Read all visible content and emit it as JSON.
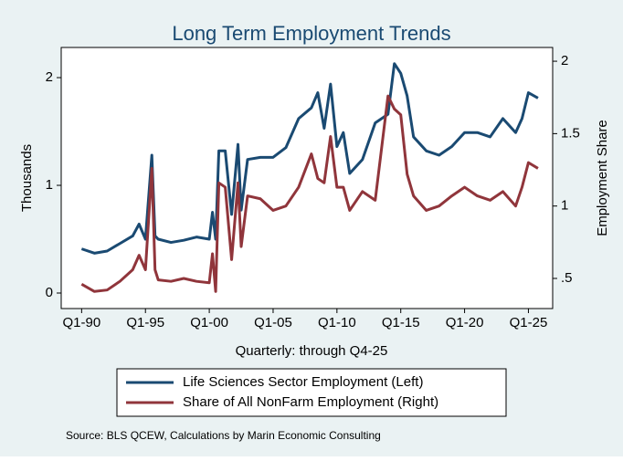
{
  "chart_data": {
    "type": "line",
    "title": "Long Term Employment Trends",
    "x_label": "Quarterly: through Q4-25",
    "y_label": "Thousands",
    "y2_label": "Employment Share",
    "source": "Source: BLS QCEW, Calculations by Marin Economic Consulting",
    "x": [
      1990,
      1991,
      1992,
      1993,
      1994,
      1994.5,
      1995,
      1995.5,
      1995.75,
      1996,
      1997,
      1998,
      1999,
      2000,
      2000.25,
      2000.5,
      2000.75,
      2001.25,
      2001.75,
      2002.25,
      2002.5,
      2003,
      2004,
      2005,
      2006,
      2007,
      2008,
      2008.5,
      2009,
      2009.5,
      2010,
      2010.5,
      2011,
      2012,
      2013,
      2014,
      2014.5,
      2015,
      2015.5,
      2016,
      2017,
      2018,
      2019,
      2020,
      2021,
      2022,
      2023,
      2024,
      2024.5,
      2025,
      2025.75
    ],
    "series": [
      {
        "name": "Life Sciences Sector Employment (Left)",
        "color": "#1a4a72",
        "axis": "y",
        "values": [
          0.41,
          0.37,
          0.39,
          0.46,
          0.53,
          0.64,
          0.5,
          1.28,
          0.53,
          0.5,
          0.47,
          0.49,
          0.52,
          0.5,
          0.75,
          0.5,
          1.32,
          1.32,
          0.73,
          1.38,
          0.77,
          1.24,
          1.26,
          1.26,
          1.35,
          1.62,
          1.72,
          1.86,
          1.53,
          1.94,
          1.36,
          1.49,
          1.11,
          1.24,
          1.58,
          1.66,
          2.13,
          2.04,
          1.83,
          1.45,
          1.32,
          1.28,
          1.36,
          1.49,
          1.49,
          1.45,
          1.62,
          1.49,
          1.62,
          1.86,
          1.81
        ]
      },
      {
        "name": "Share of All NonFarm Employment (Right)",
        "color": "#90353b",
        "axis": "y2",
        "values": [
          0.46,
          0.41,
          0.42,
          0.48,
          0.56,
          0.66,
          0.56,
          1.26,
          0.56,
          0.49,
          0.48,
          0.5,
          0.48,
          0.47,
          0.67,
          0.41,
          1.16,
          1.13,
          0.63,
          1.16,
          0.72,
          1.07,
          1.05,
          0.97,
          1.0,
          1.13,
          1.36,
          1.19,
          1.16,
          1.48,
          1.13,
          1.13,
          0.97,
          1.1,
          1.04,
          1.76,
          1.67,
          1.63,
          1.22,
          1.07,
          0.97,
          1.0,
          1.07,
          1.13,
          1.07,
          1.04,
          1.1,
          1.0,
          1.13,
          1.3,
          1.26
        ]
      }
    ],
    "xlim": [
      1988.4,
      2026.9
    ],
    "xticks": [
      {
        "value": 1990,
        "label": "Q1-90"
      },
      {
        "value": 1995,
        "label": "Q1-95"
      },
      {
        "value": 2000,
        "label": "Q1-00"
      },
      {
        "value": 2005,
        "label": "Q1-05"
      },
      {
        "value": 2010,
        "label": "Q1-10"
      },
      {
        "value": 2015,
        "label": "Q1-15"
      },
      {
        "value": 2020,
        "label": "Q1-20"
      },
      {
        "value": 2025,
        "label": "Q1-25"
      }
    ],
    "ylim": [
      -0.144,
      2.28
    ],
    "yticks": [
      0,
      1,
      2
    ],
    "y2lim": [
      0.292,
      2.095
    ],
    "y2ticks": [
      {
        "value": 0.5,
        "label": ".5"
      },
      1,
      1.5,
      2
    ],
    "legend": "bottom"
  }
}
